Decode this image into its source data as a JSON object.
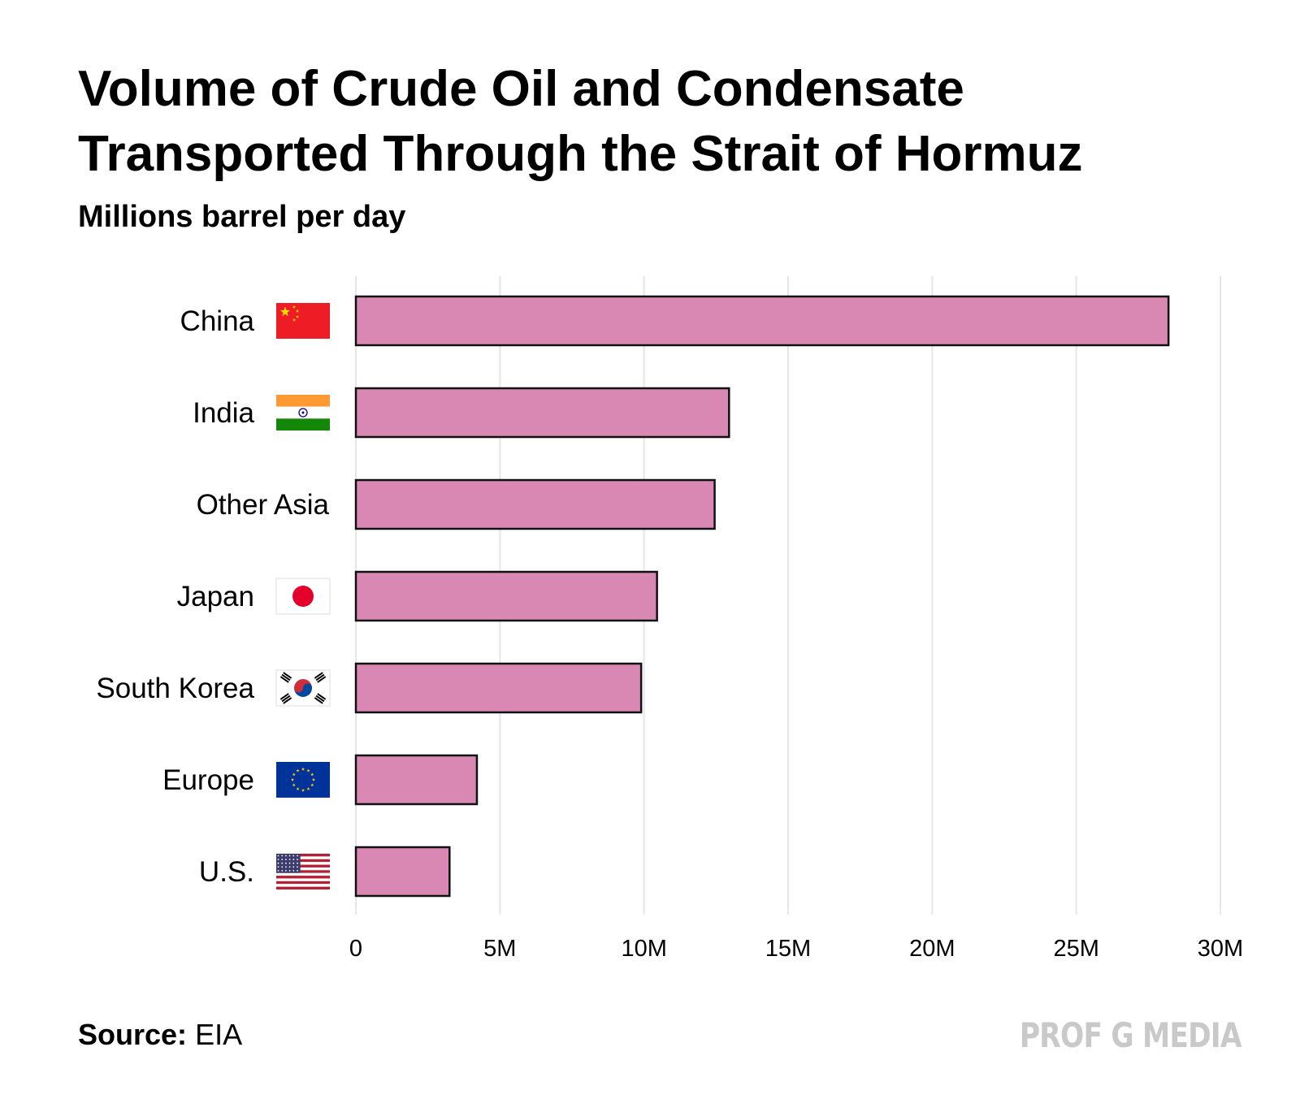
{
  "title": "Volume of Crude Oil and Condensate Transported Through the Strait of Hormuz",
  "subtitle": "Millions barrel per day",
  "source": {
    "label": "Source:",
    "value": "EIA"
  },
  "brand": "PROF G MEDIA",
  "colors": {
    "bar_fill": "#d988b4",
    "bar_stroke": "#111111",
    "grid": "#e6e6e6"
  },
  "chart_data": {
    "type": "bar",
    "orientation": "horizontal",
    "categories": [
      "China",
      "India",
      "Other Asia",
      "Japan",
      "South Korea",
      "Europe",
      "U.S."
    ],
    "flags": [
      "china-flag-icon",
      "india-flag-icon",
      null,
      "japan-flag-icon",
      "south-korea-flag-icon",
      "eu-flag-icon",
      "us-flag-icon"
    ],
    "values": [
      28.2,
      12.95,
      12.45,
      10.45,
      9.9,
      4.2,
      3.25
    ],
    "unit": "M",
    "xlim": [
      0,
      30
    ],
    "xticks": [
      0,
      5,
      10,
      15,
      20,
      25,
      30
    ],
    "xtick_labels": [
      "0",
      "5M",
      "10M",
      "15M",
      "20M",
      "25M",
      "30M"
    ],
    "grid": "vertical"
  }
}
